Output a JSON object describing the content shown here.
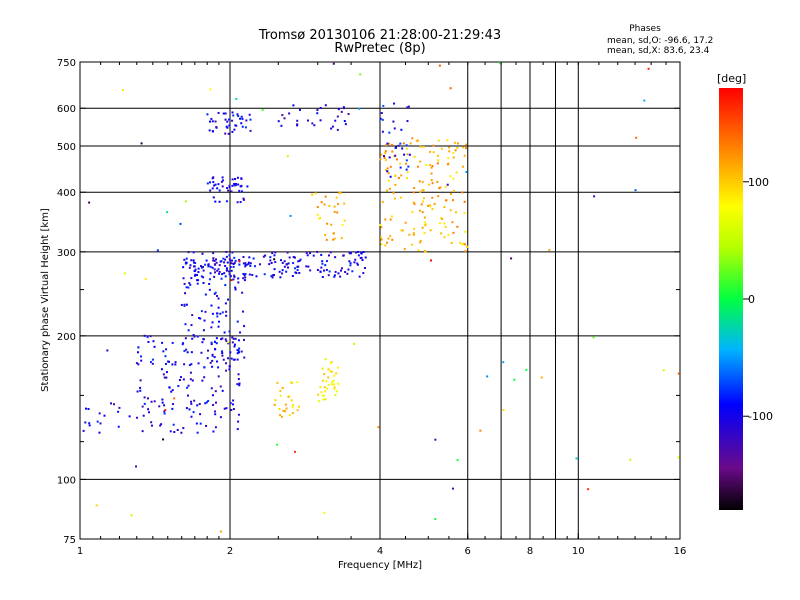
{
  "chart_data": {
    "type": "scatter",
    "title": "Tromsø 20130106 21:28:00-21:29:43",
    "subtitle": "RwPretec (8p)",
    "xlabel": "Frequency [MHz]",
    "ylabel": "Stationary phase Virtual Height [km]",
    "x_scale": "log",
    "y_scale": "log",
    "xlim": [
      1,
      16
    ],
    "ylim": [
      75,
      750
    ],
    "x_ticks": [
      1,
      2,
      4,
      6,
      8,
      10,
      16
    ],
    "x_minor_ticks": [
      7,
      9
    ],
    "y_ticks": [
      75,
      100,
      200,
      300,
      400,
      500,
      600,
      750
    ],
    "y_minor_ticks": [
      120,
      150,
      250
    ],
    "grid": true,
    "stats": {
      "header": "Phases",
      "line_o": "mean, sd,O: -96.6, 17.2",
      "line_x": "mean, sd,X:  83.6, 23.4"
    },
    "colorbar": {
      "label": "[deg]",
      "range": [
        -180,
        180
      ],
      "ticks": [
        100,
        0,
        -100
      ],
      "colormap": "rainbow"
    },
    "clusters": [
      {
        "x_range": [
          1.0,
          2.1
        ],
        "y_range": [
          125,
          145
        ],
        "phase": -100,
        "count": 60
      },
      {
        "x_range": [
          1.3,
          2.1
        ],
        "y_range": [
          140,
          200
        ],
        "phase": -100,
        "count": 110
      },
      {
        "x_range": [
          1.6,
          2.15
        ],
        "y_range": [
          170,
          290
        ],
        "phase": -100,
        "count": 140
      },
      {
        "x_range": [
          1.6,
          3.8
        ],
        "y_range": [
          265,
          300
        ],
        "phase": -100,
        "count": 190
      },
      {
        "x_range": [
          1.8,
          2.2
        ],
        "y_range": [
          380,
          430
        ],
        "phase": -100,
        "count": 45
      },
      {
        "x_range": [
          1.8,
          2.2
        ],
        "y_range": [
          530,
          590
        ],
        "phase": -100,
        "count": 40
      },
      {
        "x_range": [
          2.5,
          3.5
        ],
        "y_range": [
          540,
          610
        ],
        "phase": -110,
        "count": 30
      },
      {
        "x_range": [
          2.45,
          2.75
        ],
        "y_range": [
          135,
          160
        ],
        "phase": 95,
        "count": 25
      },
      {
        "x_range": [
          3.0,
          3.3
        ],
        "y_range": [
          145,
          180
        ],
        "phase": 80,
        "count": 35
      },
      {
        "x_range": [
          2.9,
          3.4
        ],
        "y_range": [
          315,
          400
        ],
        "phase": 105,
        "count": 30
      },
      {
        "x_range": [
          4.0,
          6.0
        ],
        "y_range": [
          300,
          520
        ],
        "phase": 110,
        "count": 170
      },
      {
        "x_range": [
          4.0,
          4.6
        ],
        "y_range": [
          430,
          620
        ],
        "phase": -95,
        "count": 30
      },
      {
        "x_range": [
          1.0,
          16.0
        ],
        "y_range": [
          75,
          750
        ],
        "phase": 0,
        "count": 70
      }
    ]
  }
}
